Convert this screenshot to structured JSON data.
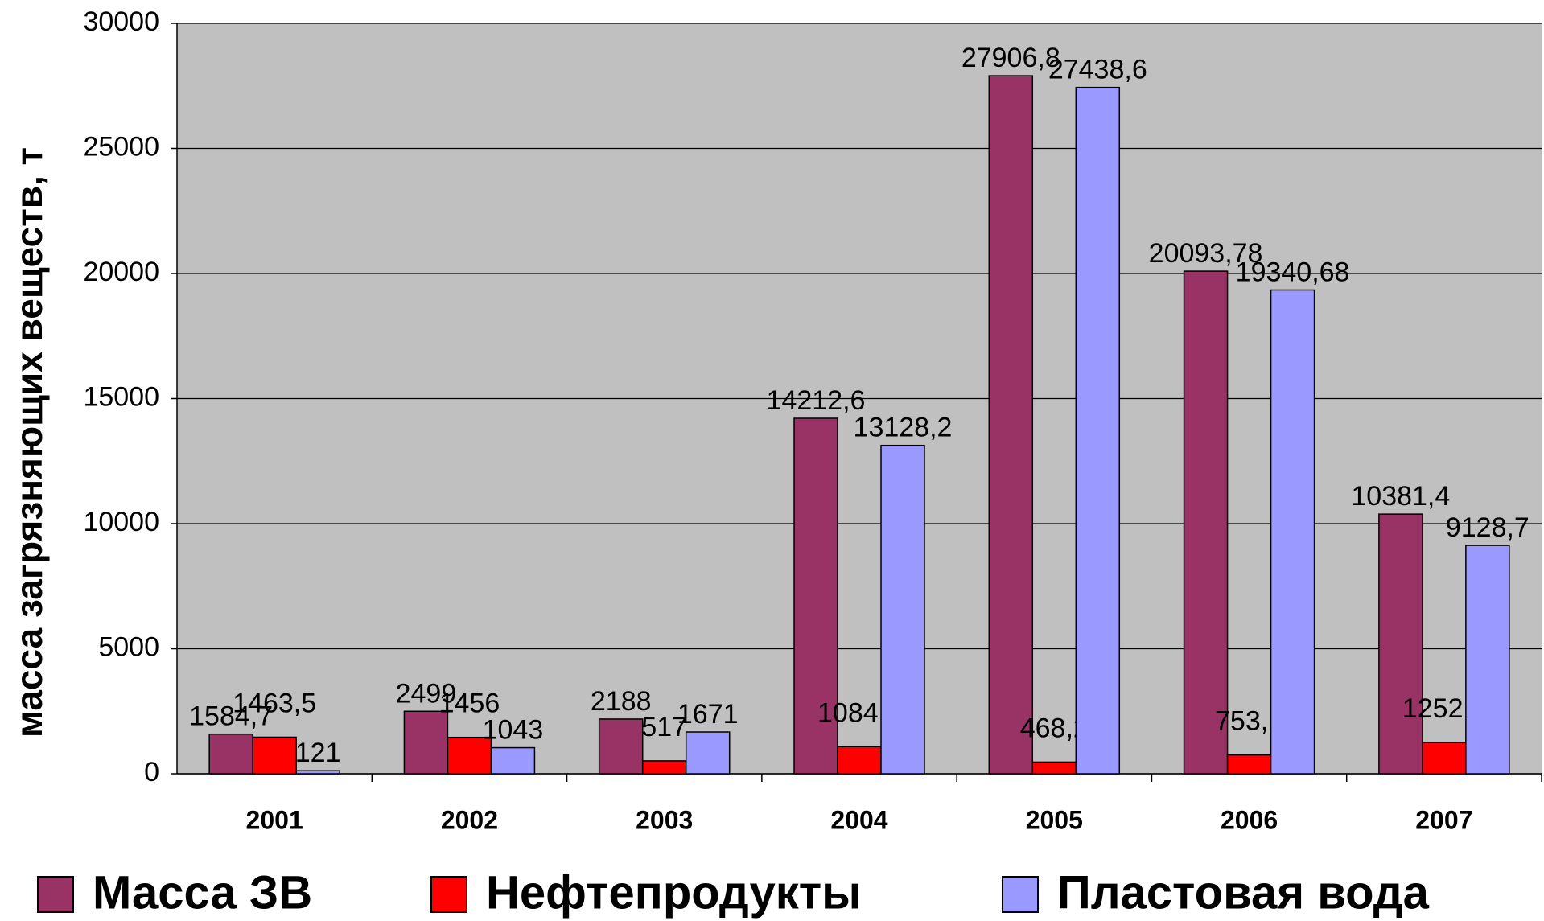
{
  "chart_data": {
    "type": "bar",
    "y_axis_label": "масса загрязняющих веществ, т",
    "categories": [
      "2001",
      "2002",
      "2003",
      "2004",
      "2005",
      "2006",
      "2007"
    ],
    "series": [
      {
        "name": "Масса ЗВ",
        "color": "#993366",
        "values": [
          1584.7,
          2499,
          2188,
          14212.6,
          27906.8,
          20093.78,
          10381.4
        ],
        "value_labels": [
          "1584,7",
          "2499",
          "2188",
          "14212,6",
          "27906,8",
          "20093,78",
          "10381,4"
        ]
      },
      {
        "name": "Нефтепродукты",
        "color": "#ff0000",
        "values": [
          1463.5,
          1456,
          517,
          1084.4,
          468.2,
          753.1,
          1252.7
        ],
        "value_labels": [
          "1463,5",
          "1456",
          "517",
          "1084,4",
          "468,2",
          "753,1",
          "1252,7"
        ]
      },
      {
        "name": "Пластовая вода",
        "color": "#9999ff",
        "values": [
          121,
          1043,
          1671,
          13128.2,
          27438.6,
          19340.68,
          9128.7
        ],
        "value_labels": [
          "121",
          "1043",
          "1671",
          "13128,2",
          "27438,6",
          "19340,68",
          "9128,7"
        ]
      }
    ],
    "ylim": [
      0,
      30000
    ],
    "yticks": [
      0,
      5000,
      10000,
      15000,
      20000,
      25000,
      30000
    ],
    "grid": true,
    "plot_background": "#c0c0c0",
    "legend": "bottom"
  }
}
